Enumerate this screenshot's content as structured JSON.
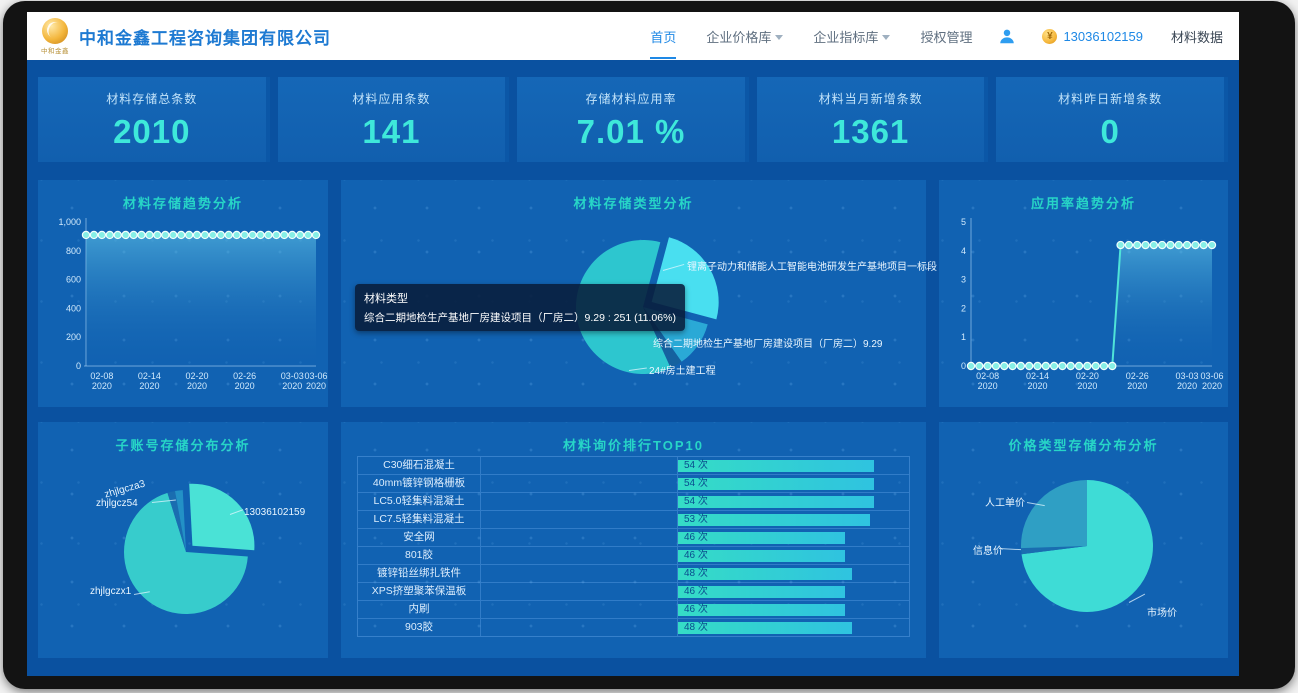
{
  "header": {
    "logo_caption": "中和金鑫",
    "company_name": "中和金鑫工程咨询集团有限公司",
    "nav": [
      {
        "label": "首页",
        "active": true,
        "caret": false
      },
      {
        "label": "企业价格库",
        "active": false,
        "caret": true
      },
      {
        "label": "企业指标库",
        "active": false,
        "caret": true
      },
      {
        "label": "授权管理",
        "active": false,
        "caret": false
      }
    ],
    "phone": "13036102159",
    "data_link": "材料数据"
  },
  "stats": {
    "cards": [
      {
        "label": "材料存储总条数",
        "value": "2010"
      },
      {
        "label": "材料应用条数",
        "value": "141"
      },
      {
        "label": "存储材料应用率",
        "value": "7.01 %"
      },
      {
        "label": "材料当月新增条数",
        "value": "1361"
      },
      {
        "label": "材料昨日新增条数",
        "value": "0"
      }
    ]
  },
  "tooltip": {
    "title": "材料类型",
    "text": "综合二期地检生产基地厂房建设项目（厂房二）9.29 : 251 (11.06%)"
  },
  "chart_data": [
    {
      "id": "trend",
      "type": "line",
      "title": "材料存储趋势分析",
      "ylim": [
        0,
        1000
      ],
      "yticks": [
        "0",
        "200",
        "400",
        "600",
        "800",
        "1,000"
      ],
      "values": [
        910,
        910,
        910,
        910,
        910,
        910,
        910,
        910,
        910,
        910,
        910,
        910,
        910,
        910,
        910,
        910,
        910,
        910,
        910,
        910,
        910,
        910,
        910,
        910,
        910,
        910,
        910,
        910,
        910,
        910
      ],
      "xticks": [
        {
          "i": 2,
          "l1": "02-08",
          "l2": "2020"
        },
        {
          "i": 8,
          "l1": "02-14",
          "l2": "2020"
        },
        {
          "i": 14,
          "l1": "02-20",
          "l2": "2020"
        },
        {
          "i": 20,
          "l1": "02-26",
          "l2": "2020"
        },
        {
          "i": 26,
          "l1": "03-03",
          "l2": "2020"
        },
        {
          "i": 29,
          "l1": "03-06",
          "l2": "2020"
        }
      ]
    },
    {
      "id": "storage-type",
      "type": "pie",
      "title": "材料存储类型分析",
      "start_deg": 15,
      "slices": [
        {
          "name": "锂离子动力和储能人工智能电池研发生产基地项目一标段",
          "pct": 25,
          "color": "#49dff0",
          "explode": 10
        },
        {
          "name": "综合二期地检生产基地厂房建设项目（厂房二）9.29",
          "pct": 11.06,
          "color": "#2aa9d6"
        },
        {
          "name": "24#房土建工程",
          "pct": 3,
          "color": "#15619f"
        },
        {
          "name": "",
          "pct": 60.94,
          "color": "#2dc6cf"
        }
      ]
    },
    {
      "id": "rate",
      "type": "line",
      "title": "应用率趋势分析",
      "ylim": [
        0,
        5
      ],
      "yticks": [
        "0",
        "1",
        "2",
        "3",
        "4",
        "5"
      ],
      "values": [
        0,
        0,
        0,
        0,
        0,
        0,
        0,
        0,
        0,
        0,
        0,
        0,
        0,
        0,
        0,
        0,
        0,
        0,
        4.2,
        4.2,
        4.2,
        4.2,
        4.2,
        4.2,
        4.2,
        4.2,
        4.2,
        4.2,
        4.2,
        4.2
      ],
      "xticks": [
        {
          "i": 2,
          "l1": "02-08",
          "l2": "2020"
        },
        {
          "i": 8,
          "l1": "02-14",
          "l2": "2020"
        },
        {
          "i": 14,
          "l1": "02-20",
          "l2": "2020"
        },
        {
          "i": 20,
          "l1": "02-26",
          "l2": "2020"
        },
        {
          "i": 26,
          "l1": "03-03",
          "l2": "2020"
        },
        {
          "i": 29,
          "l1": "03-06",
          "l2": "2020"
        }
      ]
    },
    {
      "id": "sub-account",
      "type": "pie",
      "title": "子账号存储分布分析",
      "start_deg": -3,
      "slices": [
        {
          "name": "13036102159",
          "pct": 27,
          "color": "#4ae2d6",
          "explode": 9
        },
        {
          "name": "zhjlgczx1",
          "pct": 69,
          "color": "#37cccc"
        },
        {
          "name": "zhjlgcz54",
          "pct": 2,
          "color": "#1a6db0"
        },
        {
          "name": "zhjlgcza3",
          "pct": 2,
          "color": "#2391c6"
        }
      ]
    },
    {
      "id": "inquiry-top10",
      "type": "bar",
      "title": "材料询价排行TOP10",
      "max": 54,
      "rows": [
        {
          "name": "C30细石混凝土",
          "value": 54,
          "label": "54 次"
        },
        {
          "name": "40mm镀锌钢格栅板",
          "value": 54,
          "label": "54 次"
        },
        {
          "name": "LC5.0轻集料混凝土",
          "value": 54,
          "label": "54 次"
        },
        {
          "name": "LC7.5轻集料混凝土",
          "value": 53,
          "label": "53 次"
        },
        {
          "name": "安全网",
          "value": 46,
          "label": "46 次"
        },
        {
          "name": "801胶",
          "value": 46,
          "label": "46 次"
        },
        {
          "name": "镀锌铅丝绑扎铁件",
          "value": 48,
          "label": "48 次"
        },
        {
          "name": "XPS挤塑聚苯保温板",
          "value": 46,
          "label": "46 次"
        },
        {
          "name": "内刷",
          "value": 46,
          "label": "46 次"
        },
        {
          "name": "903胶",
          "value": 48,
          "label": "48 次"
        }
      ]
    },
    {
      "id": "price-type",
      "type": "pie",
      "title": "价格类型存储分布分析",
      "start_deg": 0,
      "slices": [
        {
          "name": "市场价",
          "pct": 73,
          "color": "#3edcd6"
        },
        {
          "name": "信息价",
          "pct": 1.5,
          "color": "#1a6db0"
        },
        {
          "name": "人工单价",
          "pct": 25.5,
          "color": "#2f9fc4"
        }
      ]
    }
  ]
}
